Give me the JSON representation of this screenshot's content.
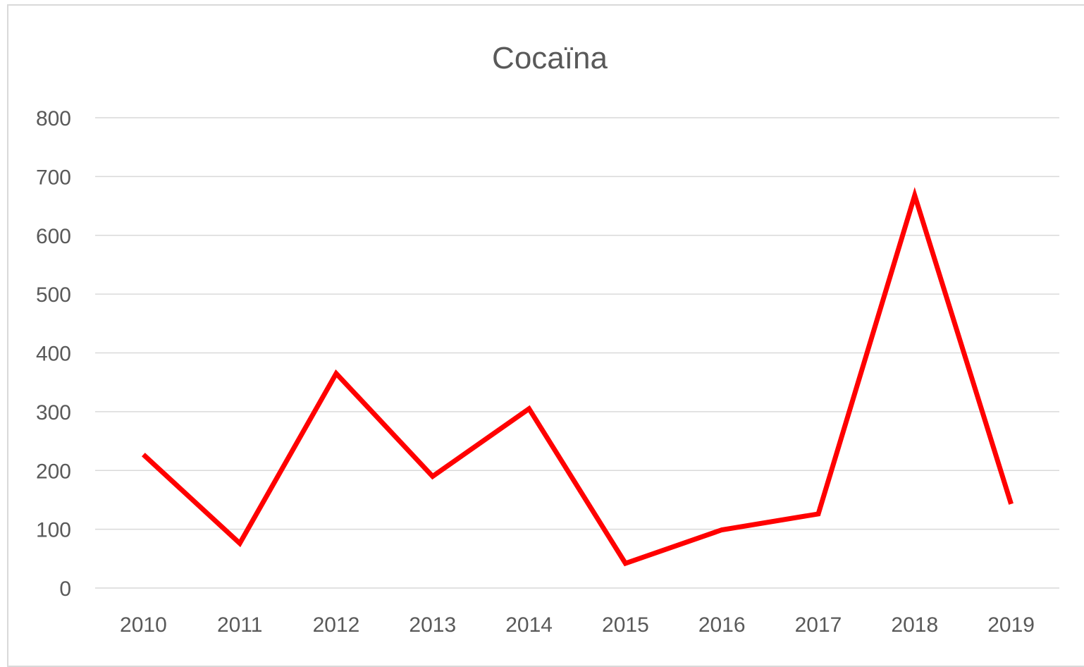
{
  "chart_data": {
    "type": "line",
    "title": "Cocaïna",
    "xlabel": "",
    "ylabel": "",
    "categories": [
      "2010",
      "2011",
      "2012",
      "2013",
      "2014",
      "2015",
      "2016",
      "2017",
      "2018",
      "2019"
    ],
    "series": [
      {
        "values": [
          227,
          76,
          365,
          190,
          305,
          42,
          99,
          126,
          668,
          143
        ],
        "color": "#ff0000"
      }
    ],
    "ylim": [
      0,
      800
    ],
    "yticks": [
      "0",
      "100",
      "200",
      "300",
      "400",
      "500",
      "600",
      "700",
      "800"
    ],
    "grid": true,
    "legend": "none"
  }
}
